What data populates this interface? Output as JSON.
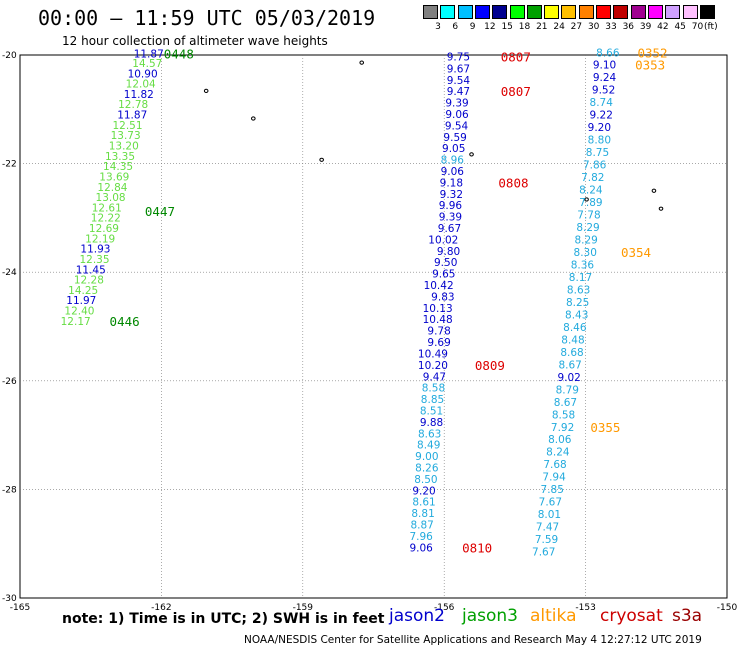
{
  "header": {
    "title": "00:00 – 11:59 UTC 05/03/2019",
    "subtitle": "12 hour collection of altimeter wave heights"
  },
  "legend": {
    "colors": [
      "#808080",
      "#00ffff",
      "#00c0ff",
      "#0000ff",
      "#000090",
      "#00ff00",
      "#00a000",
      "#ffff00",
      "#ffc000",
      "#ff8000",
      "#ff0000",
      "#c00000",
      "#a00090",
      "#ff00ff",
      "#d0a0ff",
      "#ffc0ff",
      "#000000"
    ],
    "labels": [
      "3",
      "6",
      "9",
      "12",
      "15",
      "18",
      "21",
      "24",
      "27",
      "30",
      "33",
      "36",
      "39",
      "42",
      "45",
      "70",
      "(ft)"
    ]
  },
  "axes": {
    "lon_min": -165,
    "lon_max": -150,
    "lat_min": -30,
    "lat_max": -20,
    "x_labels": [
      "-165",
      "-162",
      "-159",
      "-156",
      "-153",
      "-150"
    ],
    "y_labels": [
      "-20",
      "-22",
      "-24",
      "-26",
      "-28",
      "-30"
    ]
  },
  "footer": {
    "note": "note:  1) Time is in UTC;  2) SWH is in feet",
    "credit": "NOAA/NESDIS Center for Satellite Applications and Research    May  4 12:27:12 UTC 2019",
    "missions": [
      {
        "name": "jason2",
        "color": "#0000cc"
      },
      {
        "name": "jason3",
        "color": "#00a000"
      },
      {
        "name": "altika",
        "color": "#ff9900"
      },
      {
        "name": "cryosat",
        "color": "#cc0000"
      },
      {
        "name": "s3a",
        "color": "#990000"
      }
    ]
  },
  "tracks": [
    {
      "name": "jason3-left",
      "points": [
        {
          "lon": -161.95,
          "lat": -20.05,
          "v": "11.87",
          "c": "#0000cc"
        },
        {
          "lon": -161.98,
          "lat": -20.22,
          "v": "14.57",
          "c": "#66dd44"
        },
        {
          "lon": -162.08,
          "lat": -20.41,
          "v": "10.90",
          "c": "#0000cc"
        },
        {
          "lon": -162.12,
          "lat": -20.6,
          "v": "12.04",
          "c": "#66dd44"
        },
        {
          "lon": -162.16,
          "lat": -20.79,
          "v": "11.82",
          "c": "#0000cc"
        },
        {
          "lon": -162.28,
          "lat": -20.98,
          "v": "12.78",
          "c": "#66dd44"
        },
        {
          "lon": -162.3,
          "lat": -21.17,
          "v": "11.87",
          "c": "#0000cc"
        },
        {
          "lon": -162.4,
          "lat": -21.36,
          "v": "12.51",
          "c": "#66dd44"
        },
        {
          "lon": -162.44,
          "lat": -21.55,
          "v": "13.73",
          "c": "#66dd44"
        },
        {
          "lon": -162.48,
          "lat": -21.74,
          "v": "13.20",
          "c": "#66dd44"
        },
        {
          "lon": -162.56,
          "lat": -21.93,
          "v": "13.35",
          "c": "#66dd44"
        },
        {
          "lon": -162.6,
          "lat": -22.12,
          "v": "14.35",
          "c": "#66dd44"
        },
        {
          "lon": -162.68,
          "lat": -22.31,
          "v": "13.69",
          "c": "#66dd44"
        },
        {
          "lon": -162.72,
          "lat": -22.5,
          "v": "12.84",
          "c": "#66dd44"
        },
        {
          "lon": -162.76,
          "lat": -22.69,
          "v": "13.08",
          "c": "#66dd44"
        },
        {
          "lon": -162.84,
          "lat": -22.88,
          "v": "12.61",
          "c": "#66dd44"
        },
        {
          "lon": -162.86,
          "lat": -23.07,
          "v": "12.22",
          "c": "#66dd44"
        },
        {
          "lon": -162.9,
          "lat": -23.26,
          "v": "12.69",
          "c": "#66dd44"
        },
        {
          "lon": -162.98,
          "lat": -23.45,
          "v": "12.19",
          "c": "#66dd44"
        },
        {
          "lon": -163.08,
          "lat": -23.64,
          "v": "11.93",
          "c": "#0000cc"
        },
        {
          "lon": -163.1,
          "lat": -23.83,
          "v": "12.35",
          "c": "#66dd44"
        },
        {
          "lon": -163.18,
          "lat": -24.02,
          "v": "11.45",
          "c": "#0000cc"
        },
        {
          "lon": -163.22,
          "lat": -24.21,
          "v": "12.28",
          "c": "#66dd44"
        },
        {
          "lon": -163.34,
          "lat": -24.4,
          "v": "14.25",
          "c": "#66dd44"
        },
        {
          "lon": -163.38,
          "lat": -24.59,
          "v": "11.97",
          "c": "#0000cc"
        },
        {
          "lon": -163.42,
          "lat": -24.78,
          "v": "12.40",
          "c": "#66dd44"
        },
        {
          "lon": -163.5,
          "lat": -24.97,
          "v": "12.17",
          "c": "#66dd44"
        }
      ]
    },
    {
      "name": "jason2-mid",
      "points": [
        {
          "lon": -155.45,
          "lat": -20.1,
          "v": "9.75",
          "c": "#0000cc"
        },
        {
          "lon": -155.45,
          "lat": -20.32,
          "v": "9.67",
          "c": "#0000cc"
        },
        {
          "lon": -155.45,
          "lat": -20.53,
          "v": "9.54",
          "c": "#0000cc"
        },
        {
          "lon": -155.45,
          "lat": -20.74,
          "v": "9.47",
          "c": "#0000cc"
        },
        {
          "lon": -155.48,
          "lat": -20.95,
          "v": "9.39",
          "c": "#0000cc"
        },
        {
          "lon": -155.48,
          "lat": -21.16,
          "v": "9.06",
          "c": "#0000cc"
        },
        {
          "lon": -155.49,
          "lat": -21.37,
          "v": "9.54",
          "c": "#0000cc"
        },
        {
          "lon": -155.52,
          "lat": -21.58,
          "v": "9.59",
          "c": "#0000cc"
        },
        {
          "lon": -155.55,
          "lat": -21.79,
          "v": "9.05",
          "c": "#0000cc"
        },
        {
          "lon": -155.58,
          "lat": -22.0,
          "v": "8.96",
          "c": "#22aadd"
        },
        {
          "lon": -155.58,
          "lat": -22.21,
          "v": "9.06",
          "c": "#0000cc"
        },
        {
          "lon": -155.6,
          "lat": -22.42,
          "v": "9.18",
          "c": "#0000cc"
        },
        {
          "lon": -155.6,
          "lat": -22.63,
          "v": "9.32",
          "c": "#0000cc"
        },
        {
          "lon": -155.62,
          "lat": -22.84,
          "v": "9.96",
          "c": "#0000cc"
        },
        {
          "lon": -155.62,
          "lat": -23.05,
          "v": "9.39",
          "c": "#0000cc"
        },
        {
          "lon": -155.64,
          "lat": -23.26,
          "v": "9.67",
          "c": "#0000cc"
        },
        {
          "lon": -155.7,
          "lat": -23.47,
          "v": "10.02",
          "c": "#0000cc"
        },
        {
          "lon": -155.66,
          "lat": -23.68,
          "v": "9.80",
          "c": "#0000cc"
        },
        {
          "lon": -155.72,
          "lat": -23.89,
          "v": "9.50",
          "c": "#0000cc"
        },
        {
          "lon": -155.76,
          "lat": -24.1,
          "v": "9.65",
          "c": "#0000cc"
        },
        {
          "lon": -155.8,
          "lat": -24.31,
          "v": "10.42",
          "c": "#0000cc"
        },
        {
          "lon": -155.78,
          "lat": -24.52,
          "v": "9.83",
          "c": "#0000cc"
        },
        {
          "lon": -155.82,
          "lat": -24.73,
          "v": "10.13",
          "c": "#0000cc"
        },
        {
          "lon": -155.82,
          "lat": -24.94,
          "v": "10.48",
          "c": "#0000cc"
        },
        {
          "lon": -155.86,
          "lat": -25.15,
          "v": "9.78",
          "c": "#0000cc"
        },
        {
          "lon": -155.86,
          "lat": -25.36,
          "v": "9.69",
          "c": "#0000cc"
        },
        {
          "lon": -155.92,
          "lat": -25.57,
          "v": "10.49",
          "c": "#0000cc"
        },
        {
          "lon": -155.92,
          "lat": -25.78,
          "v": "10.20",
          "c": "#0000cc"
        },
        {
          "lon": -155.96,
          "lat": -25.99,
          "v": "9.47",
          "c": "#0000cc"
        },
        {
          "lon": -155.98,
          "lat": -26.2,
          "v": "8.58",
          "c": "#22aadd"
        },
        {
          "lon": -156.0,
          "lat": -26.41,
          "v": "8.85",
          "c": "#22aadd"
        },
        {
          "lon": -156.02,
          "lat": -26.62,
          "v": "8.51",
          "c": "#22aadd"
        },
        {
          "lon": -156.02,
          "lat": -26.83,
          "v": "9.88",
          "c": "#0000cc"
        },
        {
          "lon": -156.06,
          "lat": -27.04,
          "v": "8.63",
          "c": "#22aadd"
        },
        {
          "lon": -156.08,
          "lat": -27.25,
          "v": "8.49",
          "c": "#22aadd"
        },
        {
          "lon": -156.12,
          "lat": -27.46,
          "v": "9.00",
          "c": "#22aadd"
        },
        {
          "lon": -156.12,
          "lat": -27.67,
          "v": "8.26",
          "c": "#22aadd"
        },
        {
          "lon": -156.14,
          "lat": -27.88,
          "v": "8.50",
          "c": "#22aadd"
        },
        {
          "lon": -156.18,
          "lat": -28.09,
          "v": "9.20",
          "c": "#0000cc"
        },
        {
          "lon": -156.18,
          "lat": -28.3,
          "v": "8.61",
          "c": "#22aadd"
        },
        {
          "lon": -156.2,
          "lat": -28.51,
          "v": "8.81",
          "c": "#22aadd"
        },
        {
          "lon": -156.22,
          "lat": -28.72,
          "v": "8.87",
          "c": "#22aadd"
        },
        {
          "lon": -156.24,
          "lat": -28.93,
          "v": "7.96",
          "c": "#22aadd"
        },
        {
          "lon": -156.24,
          "lat": -29.14,
          "v": "9.06",
          "c": "#0000cc"
        }
      ]
    },
    {
      "name": "jason2-right",
      "points": [
        {
          "lon": -152.28,
          "lat": -20.03,
          "v": "8.66",
          "c": "#22aadd"
        },
        {
          "lon": -152.35,
          "lat": -20.25,
          "v": "9.10",
          "c": "#0000cc"
        },
        {
          "lon": -152.35,
          "lat": -20.48,
          "v": "9.24",
          "c": "#0000cc"
        },
        {
          "lon": -152.37,
          "lat": -20.71,
          "v": "9.52",
          "c": "#0000cc"
        },
        {
          "lon": -152.42,
          "lat": -20.94,
          "v": "8.74",
          "c": "#22aadd"
        },
        {
          "lon": -152.42,
          "lat": -21.17,
          "v": "9.22",
          "c": "#0000cc"
        },
        {
          "lon": -152.46,
          "lat": -21.4,
          "v": "9.20",
          "c": "#0000cc"
        },
        {
          "lon": -152.46,
          "lat": -21.63,
          "v": "8.80",
          "c": "#22aadd"
        },
        {
          "lon": -152.5,
          "lat": -21.86,
          "v": "8.75",
          "c": "#22aadd"
        },
        {
          "lon": -152.56,
          "lat": -22.09,
          "v": "7.86",
          "c": "#22aadd"
        },
        {
          "lon": -152.6,
          "lat": -22.32,
          "v": "7.82",
          "c": "#22aadd"
        },
        {
          "lon": -152.64,
          "lat": -22.55,
          "v": "8.24",
          "c": "#22aadd"
        },
        {
          "lon": -152.64,
          "lat": -22.78,
          "v": "7.89",
          "c": "#22aadd"
        },
        {
          "lon": -152.68,
          "lat": -23.01,
          "v": "7.78",
          "c": "#22aadd"
        },
        {
          "lon": -152.7,
          "lat": -23.24,
          "v": "8.29",
          "c": "#22aadd"
        },
        {
          "lon": -152.74,
          "lat": -23.47,
          "v": "8.29",
          "c": "#22aadd"
        },
        {
          "lon": -152.76,
          "lat": -23.7,
          "v": "8.30",
          "c": "#22aadd"
        },
        {
          "lon": -152.82,
          "lat": -23.93,
          "v": "8.36",
          "c": "#22aadd"
        },
        {
          "lon": -152.86,
          "lat": -24.16,
          "v": "8.17",
          "c": "#22aadd"
        },
        {
          "lon": -152.9,
          "lat": -24.39,
          "v": "8.63",
          "c": "#22aadd"
        },
        {
          "lon": -152.92,
          "lat": -24.62,
          "v": "8.25",
          "c": "#22aadd"
        },
        {
          "lon": -152.94,
          "lat": -24.85,
          "v": "8.43",
          "c": "#22aadd"
        },
        {
          "lon": -152.98,
          "lat": -25.08,
          "v": "8.46",
          "c": "#22aadd"
        },
        {
          "lon": -153.02,
          "lat": -25.31,
          "v": "8.48",
          "c": "#22aadd"
        },
        {
          "lon": -153.04,
          "lat": -25.54,
          "v": "8.68",
          "c": "#22aadd"
        },
        {
          "lon": -153.08,
          "lat": -25.77,
          "v": "8.67",
          "c": "#22aadd"
        },
        {
          "lon": -153.1,
          "lat": -26.0,
          "v": "9.02",
          "c": "#0000cc"
        },
        {
          "lon": -153.14,
          "lat": -26.23,
          "v": "8.79",
          "c": "#22aadd"
        },
        {
          "lon": -153.18,
          "lat": -26.46,
          "v": "8.67",
          "c": "#22aadd"
        },
        {
          "lon": -153.22,
          "lat": -26.69,
          "v": "8.58",
          "c": "#22aadd"
        },
        {
          "lon": -153.24,
          "lat": -26.92,
          "v": "7.92",
          "c": "#22aadd"
        },
        {
          "lon": -153.3,
          "lat": -27.15,
          "v": "8.06",
          "c": "#22aadd"
        },
        {
          "lon": -153.34,
          "lat": -27.38,
          "v": "8.24",
          "c": "#22aadd"
        },
        {
          "lon": -153.4,
          "lat": -27.61,
          "v": "7.68",
          "c": "#22aadd"
        },
        {
          "lon": -153.42,
          "lat": -27.84,
          "v": "7.94",
          "c": "#22aadd"
        },
        {
          "lon": -153.46,
          "lat": -28.07,
          "v": "7.85",
          "c": "#22aadd"
        },
        {
          "lon": -153.5,
          "lat": -28.3,
          "v": "7.67",
          "c": "#22aadd"
        },
        {
          "lon": -153.52,
          "lat": -28.53,
          "v": "8.01",
          "c": "#22aadd"
        },
        {
          "lon": -153.56,
          "lat": -28.76,
          "v": "7.47",
          "c": "#22aadd"
        },
        {
          "lon": -153.58,
          "lat": -28.99,
          "v": "7.59",
          "c": "#22aadd"
        },
        {
          "lon": -153.64,
          "lat": -29.22,
          "v": "7.67",
          "c": "#22aadd"
        }
      ]
    }
  ],
  "time_tags": [
    {
      "lon": -161.95,
      "lat": -20.05,
      "t": "0448",
      "c": "#008800"
    },
    {
      "lon": -162.35,
      "lat": -22.95,
      "t": "0447",
      "c": "#008800"
    },
    {
      "lon": -163.1,
      "lat": -24.97,
      "t": "0446",
      "c": "#008800"
    },
    {
      "lon": -154.8,
      "lat": -20.1,
      "t": "0807",
      "c": "#dd0000"
    },
    {
      "lon": -154.8,
      "lat": -20.74,
      "t": "0807",
      "c": "#dd0000"
    },
    {
      "lon": -154.85,
      "lat": -22.42,
      "t": "0808",
      "c": "#dd0000"
    },
    {
      "lon": -155.35,
      "lat": -25.78,
      "t": "0809",
      "c": "#dd0000"
    },
    {
      "lon": -155.62,
      "lat": -29.14,
      "t": "0810",
      "c": "#dd0000"
    },
    {
      "lon": -151.9,
      "lat": -20.03,
      "t": "0352",
      "c": "#ff9900"
    },
    {
      "lon": -151.95,
      "lat": -20.25,
      "t": "0353",
      "c": "#ff9900"
    },
    {
      "lon": -152.25,
      "lat": -23.7,
      "t": "0354",
      "c": "#ff9900"
    },
    {
      "lon": -152.9,
      "lat": -26.92,
      "t": "0355",
      "c": "#ff9900"
    }
  ],
  "islands": [
    {
      "lon": -161.05,
      "lat": -20.66
    },
    {
      "lon": -160.05,
      "lat": -21.17
    },
    {
      "lon": -158.6,
      "lat": -21.93
    },
    {
      "lon": -157.75,
      "lat": -20.14
    },
    {
      "lon": -152.98,
      "lat": -22.66
    },
    {
      "lon": -151.55,
      "lat": -22.5
    },
    {
      "lon": -151.4,
      "lat": -22.83
    },
    {
      "lon": -155.42,
      "lat": -21.83
    }
  ]
}
